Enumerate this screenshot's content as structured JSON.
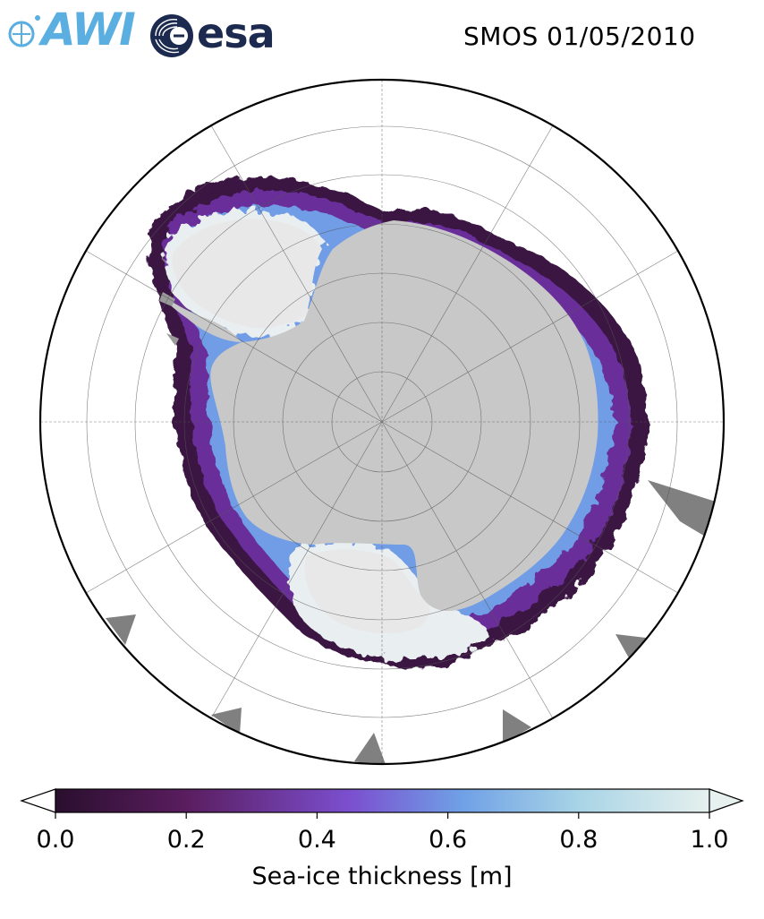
{
  "header": {
    "logo_left": "AWI",
    "logo_right": "esa",
    "title": "SMOS 01/05/2010"
  },
  "map": {
    "projection": "south-polar-stereographic",
    "ocean_color": "#ffffff",
    "land_color": "#c8c8c8",
    "ice_shelf_color": "#e9e9e9",
    "missing_data_color": "#808080",
    "graticule": true
  },
  "colorbar": {
    "colormap": "dense-reversed",
    "colors": [
      "#2a0f2e",
      "#5a1d5f",
      "#7b4fcf",
      "#6fa0e6",
      "#a8d4e6",
      "#e6f0ee"
    ],
    "range": [
      0.0,
      1.0
    ],
    "extend": "both",
    "ticks": [
      "0.0",
      "0.2",
      "0.4",
      "0.6",
      "0.8",
      "1.0"
    ],
    "label": "Sea-ice thickness [m]"
  }
}
